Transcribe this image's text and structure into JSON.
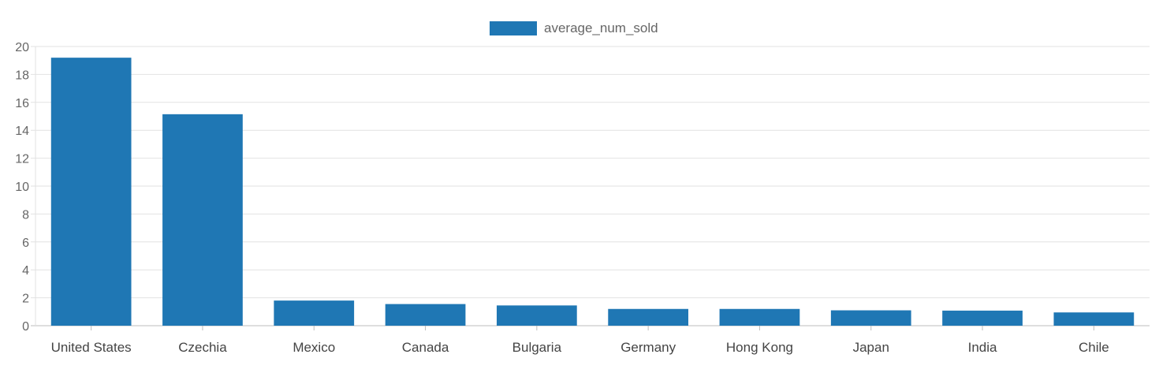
{
  "chart_data": {
    "type": "bar",
    "categories": [
      "United States",
      "Czechia",
      "Mexico",
      "Canada",
      "Bulgaria",
      "Germany",
      "Hong Kong",
      "Japan",
      "India",
      "Chile"
    ],
    "series": [
      {
        "name": "average_num_sold",
        "color": "#1f77b4",
        "values": [
          19.2,
          15.15,
          1.8,
          1.55,
          1.45,
          1.2,
          1.2,
          1.1,
          1.08,
          0.95
        ]
      }
    ],
    "ylim": [
      0,
      20
    ],
    "yticks": [
      "0",
      "2",
      "4",
      "6",
      "8",
      "10",
      "12",
      "14",
      "16",
      "18",
      "20"
    ],
    "grid": true,
    "legend_position": "top-center"
  }
}
